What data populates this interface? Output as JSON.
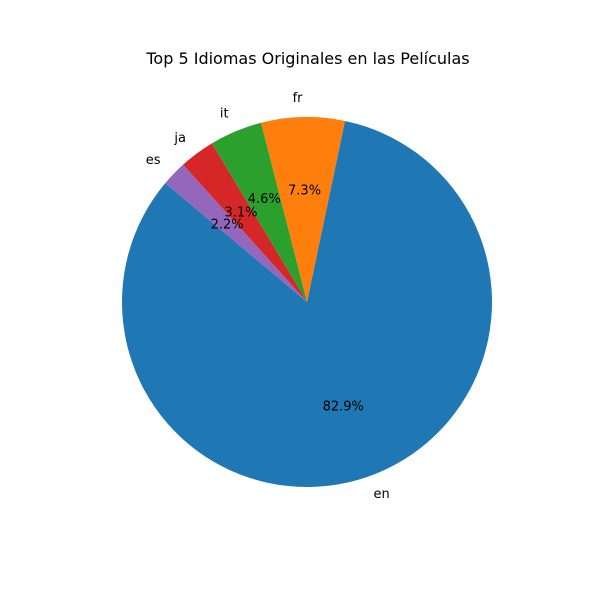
{
  "chart_data": {
    "type": "pie",
    "title": "Top 5 Idiomas Originales en las Películas",
    "categories": [
      "en",
      "fr",
      "it",
      "ja",
      "es"
    ],
    "values": [
      82.9,
      7.3,
      4.6,
      3.1,
      2.2
    ],
    "percent_labels": [
      "82.9%",
      "7.3%",
      "4.6%",
      "3.1%",
      "2.2%"
    ],
    "colors": [
      "#1f77b4",
      "#ff7f0e",
      "#2ca02c",
      "#d62728",
      "#9467bd"
    ],
    "start_angle_deg": 140,
    "direction": "counterclockwise"
  }
}
